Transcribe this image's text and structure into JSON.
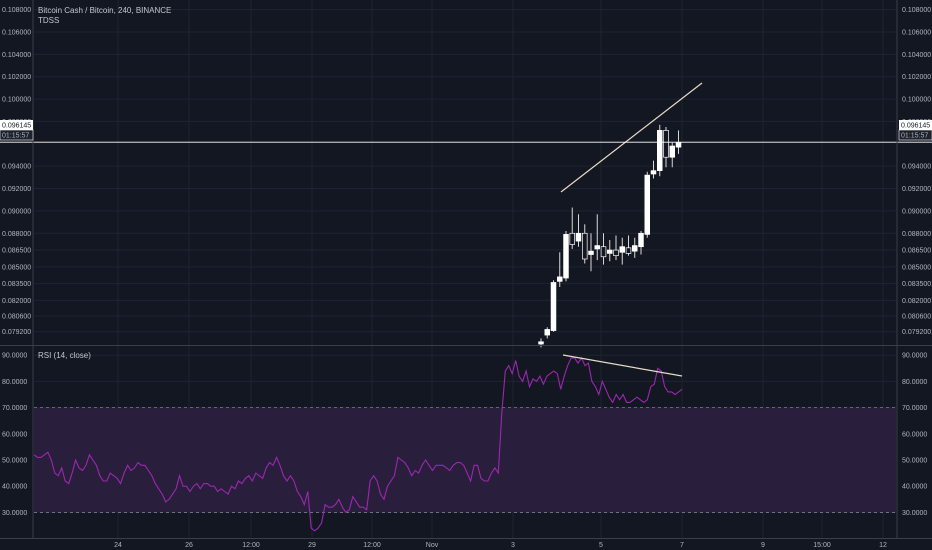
{
  "colors": {
    "background": "#131722",
    "grid": "#1f2333",
    "text": "#b2b5be",
    "candle_up": "#ffffff",
    "candle_down": "#ffffff",
    "trendline": "#e8dcc4",
    "rsi_line": "#9c27b0",
    "rsi_band": "#2a1e3d",
    "rsi_band_border": "#7d7d8c",
    "price_line": "#ffffff"
  },
  "header": {
    "symbol": "Bitcoin Cash / Bitcoin, 240, BINANCE",
    "indicator": "TDSS"
  },
  "price_tag": {
    "price": "0.096145",
    "countdown": "01:15:57"
  },
  "price_axis": {
    "ticks": [
      "0.108000",
      "0.106000",
      "0.104000",
      "0.102000",
      "0.100000",
      "0.098000",
      "0.096145",
      "0.094000",
      "0.092000",
      "0.090000",
      "0.088000",
      "0.086500",
      "0.085000",
      "0.083500",
      "0.082000",
      "0.080600",
      "0.079200"
    ]
  },
  "rsi": {
    "label": "RSI (14, close)",
    "ticks": [
      "90.0000",
      "80.0000",
      "70.0000",
      "60.0000",
      "50.0000",
      "40.0000",
      "30.0000"
    ]
  },
  "time_axis": {
    "labels": [
      "24",
      "26",
      "12:00",
      "29",
      "12:00",
      "Nov",
      "3",
      "5",
      "7",
      "9",
      "15:00",
      "12"
    ]
  },
  "chart_data": [
    {
      "type": "candlestick",
      "title": "Bitcoin Cash / Bitcoin, 240, BINANCE",
      "ylim": [
        0.0781,
        0.1085
      ],
      "last_price": 0.096145,
      "candles": [
        {
          "o": 0.0781,
          "h": 0.0786,
          "l": 0.0778,
          "c": 0.0783
        },
        {
          "o": 0.0789,
          "h": 0.0796,
          "l": 0.0786,
          "c": 0.0794
        },
        {
          "o": 0.0793,
          "h": 0.0838,
          "l": 0.0792,
          "c": 0.0836
        },
        {
          "o": 0.0837,
          "h": 0.0863,
          "l": 0.0832,
          "c": 0.0841
        },
        {
          "o": 0.084,
          "h": 0.0882,
          "l": 0.0837,
          "c": 0.0879
        },
        {
          "o": 0.088,
          "h": 0.0903,
          "l": 0.0866,
          "c": 0.087
        },
        {
          "o": 0.0873,
          "h": 0.0897,
          "l": 0.0868,
          "c": 0.088
        },
        {
          "o": 0.088,
          "h": 0.0888,
          "l": 0.0853,
          "c": 0.0857
        },
        {
          "o": 0.0861,
          "h": 0.088,
          "l": 0.0846,
          "c": 0.0864
        },
        {
          "o": 0.0866,
          "h": 0.0897,
          "l": 0.0856,
          "c": 0.0869
        },
        {
          "o": 0.0868,
          "h": 0.088,
          "l": 0.0852,
          "c": 0.0859
        },
        {
          "o": 0.0862,
          "h": 0.0874,
          "l": 0.0855,
          "c": 0.0865
        },
        {
          "o": 0.0865,
          "h": 0.0878,
          "l": 0.0856,
          "c": 0.086
        },
        {
          "o": 0.0863,
          "h": 0.0876,
          "l": 0.0852,
          "c": 0.0868
        },
        {
          "o": 0.0867,
          "h": 0.0878,
          "l": 0.086,
          "c": 0.0862
        },
        {
          "o": 0.0864,
          "h": 0.0876,
          "l": 0.0858,
          "c": 0.0869
        },
        {
          "o": 0.0868,
          "h": 0.0882,
          "l": 0.0861,
          "c": 0.088
        },
        {
          "o": 0.0879,
          "h": 0.0935,
          "l": 0.0876,
          "c": 0.0932
        },
        {
          "o": 0.0933,
          "h": 0.0945,
          "l": 0.0929,
          "c": 0.0936
        },
        {
          "o": 0.0936,
          "h": 0.0977,
          "l": 0.0931,
          "c": 0.0972
        },
        {
          "o": 0.0972,
          "h": 0.0975,
          "l": 0.0939,
          "c": 0.0948
        },
        {
          "o": 0.0948,
          "h": 0.0961,
          "l": 0.0939,
          "c": 0.0958
        },
        {
          "o": 0.0957,
          "h": 0.0972,
          "l": 0.0951,
          "c": 0.0961
        }
      ]
    },
    {
      "type": "line",
      "title": "RSI (14, close)",
      "ylim": [
        21,
        92
      ],
      "bands": [
        70,
        30
      ],
      "values": [
        52,
        51,
        51,
        52,
        53,
        50,
        45,
        44,
        47,
        42,
        41,
        45,
        50,
        47,
        46,
        48,
        52,
        50,
        48,
        44,
        42,
        42,
        45,
        44,
        43,
        41,
        45,
        48,
        46,
        47,
        49,
        48,
        48,
        46,
        44,
        41,
        39,
        37,
        34,
        35,
        37,
        39,
        44,
        40,
        40,
        38,
        40,
        41,
        39,
        41,
        41,
        40,
        40,
        38,
        39,
        38,
        37,
        40,
        39,
        42,
        41,
        43,
        44,
        42,
        45,
        44,
        43,
        47,
        49,
        48,
        51,
        48,
        44,
        42,
        44,
        42,
        38,
        36,
        33,
        38,
        24,
        23,
        24,
        26,
        33,
        32,
        32,
        33,
        35,
        32,
        30,
        31,
        36,
        34,
        32,
        32,
        31,
        42,
        44,
        42,
        37,
        35,
        40,
        42,
        44,
        51,
        50,
        49,
        47,
        44,
        46,
        45,
        48,
        50,
        48,
        46,
        48,
        48,
        48,
        47,
        46,
        48,
        49,
        49,
        48,
        45,
        42,
        48,
        48,
        43,
        42,
        42,
        45,
        47,
        45,
        68,
        84,
        86,
        83,
        88,
        82,
        80,
        84,
        78,
        81,
        80,
        82,
        79,
        82,
        83,
        84,
        83,
        77,
        82,
        86,
        89,
        89,
        87,
        89,
        86,
        87,
        80,
        78,
        75,
        80,
        77,
        74,
        72,
        75,
        73,
        75,
        72,
        72,
        73,
        74,
        73,
        72,
        73,
        78,
        79,
        85,
        84,
        78,
        76,
        76,
        75,
        76,
        77
      ]
    }
  ]
}
